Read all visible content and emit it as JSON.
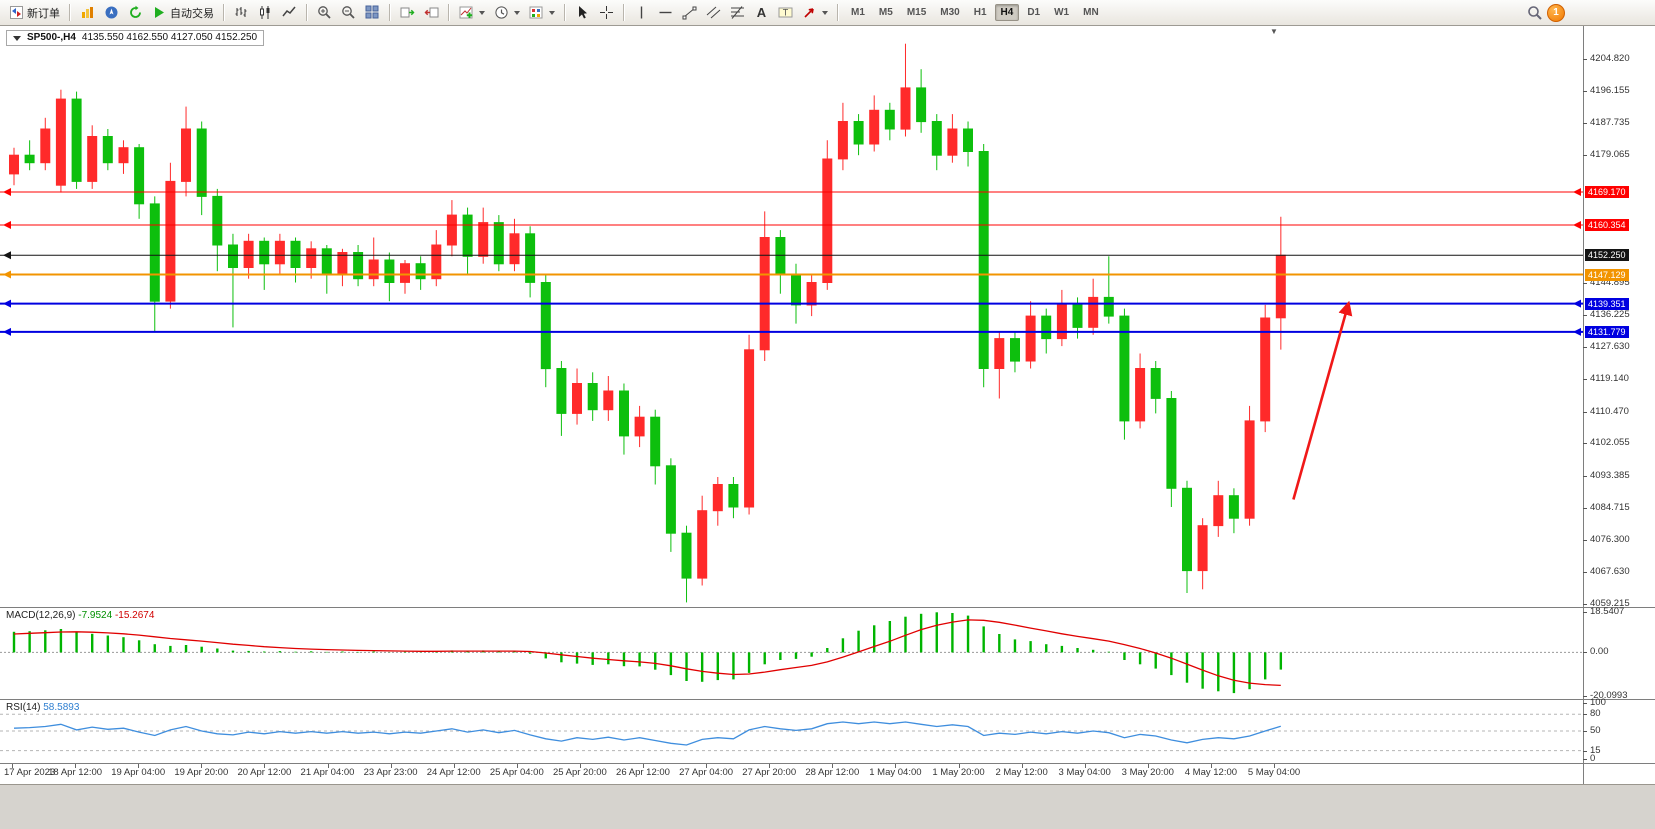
{
  "toolbar": {
    "new_order": "新订单",
    "autotrading": "自动交易",
    "timeframes": [
      "M1",
      "M5",
      "M15",
      "M30",
      "H1",
      "H4",
      "D1",
      "W1",
      "MN"
    ],
    "active_timeframe": "H4",
    "notification_count": "1"
  },
  "symbol_bar": {
    "symbol": "SP500-,H4",
    "ohlc": "4135.550 4162.550 4127.050 4152.250"
  },
  "price_axis": {
    "ticks": [
      "4204.820",
      "4196.155",
      "4187.735",
      "4179.065",
      "4144.895",
      "4136.225",
      "4127.630",
      "4119.140",
      "4110.470",
      "4102.055",
      "4093.385",
      "4084.715",
      "4076.300",
      "4067.630",
      "4059.215"
    ]
  },
  "levels": [
    {
      "name": "resistance-1",
      "price": 4169.17,
      "label": "4169.170",
      "color": "#ff0000",
      "width": 1,
      "right_marker": true
    },
    {
      "name": "resistance-2",
      "price": 4160.354,
      "label": "4160.354",
      "color": "#ff0000",
      "width": 1,
      "right_marker": true
    },
    {
      "name": "current-price",
      "price": 4152.25,
      "label": "4152.250",
      "color": "#141414",
      "width": 1,
      "right_marker": false
    },
    {
      "name": "pivot-line",
      "price": 4147.129,
      "label": "4147.129",
      "color": "#f29400",
      "width": 2,
      "right_marker": false
    },
    {
      "name": "support-1",
      "price": 4139.351,
      "label": "4139.351",
      "color": "#0000e0",
      "width": 2,
      "right_marker": true
    },
    {
      "name": "support-2",
      "price": 4131.779,
      "label": "4131.779",
      "color": "#0000e0",
      "width": 2,
      "right_marker": true
    }
  ],
  "trend_arrow": {
    "from_index": 81.8,
    "from_price": 4087,
    "to_index": 85.3,
    "to_price": 4139,
    "color": "#f01818"
  },
  "macd": {
    "title": "MACD(12,26,9)",
    "main_value": "-7.9524",
    "signal_value": "-15.2674",
    "axis_labels": [
      "18.5407",
      "0.00",
      "-20.0993"
    ],
    "range": {
      "max": 20.5,
      "min": -22
    }
  },
  "rsi": {
    "title": "RSI(14)",
    "value": "58.5893",
    "axis_labels": [
      "100",
      "80",
      "50",
      "15",
      "0"
    ],
    "levels": [
      80,
      50,
      15
    ],
    "range": {
      "max": 100,
      "min": 0
    }
  },
  "time_axis": {
    "labels": [
      "17 Apr 2023",
      "18 Apr 12:00",
      "19 Apr 04:00",
      "19 Apr 20:00",
      "20 Apr 12:00",
      "21 Apr 04:00",
      "23 Apr 23:00",
      "24 Apr 12:00",
      "25 Apr 04:00",
      "25 Apr 20:00",
      "26 Apr 12:00",
      "27 Apr 04:00",
      "27 Apr 20:00",
      "28 Apr 12:00",
      "1 May 04:00",
      "1 May 20:00",
      "2 May 12:00",
      "3 May 04:00",
      "3 May 20:00",
      "4 May 12:00",
      "5 May 04:00"
    ]
  },
  "chart_data": {
    "type": "candlestick",
    "symbol": "SP500-",
    "period": "H4",
    "up_color": "#ff2a2a",
    "down_color": "#0dbf0d",
    "price_range": {
      "top": 4213.0,
      "bottom": 4058.0
    },
    "candles": [
      [
        4174,
        4181,
        4171,
        4179
      ],
      [
        4179,
        4183,
        4175,
        4177
      ],
      [
        4177,
        4189,
        4175,
        4186
      ],
      [
        4171,
        4196.5,
        4169,
        4194
      ],
      [
        4194,
        4196,
        4170,
        4172
      ],
      [
        4172,
        4187,
        4170,
        4184
      ],
      [
        4184,
        4186,
        4175,
        4177
      ],
      [
        4177,
        4183,
        4174,
        4181
      ],
      [
        4181,
        4182,
        4162,
        4166
      ],
      [
        4166,
        4168,
        4132,
        4140
      ],
      [
        4140,
        4177,
        4138,
        4172
      ],
      [
        4172,
        4192,
        4168,
        4186
      ],
      [
        4186,
        4188,
        4163,
        4168
      ],
      [
        4168,
        4170,
        4148,
        4155
      ],
      [
        4155,
        4158,
        4133,
        4149
      ],
      [
        4149,
        4158,
        4146,
        4156
      ],
      [
        4156,
        4157,
        4143,
        4150
      ],
      [
        4150,
        4158,
        4147,
        4156
      ],
      [
        4156,
        4157,
        4145,
        4149
      ],
      [
        4149,
        4156,
        4146,
        4154
      ],
      [
        4154,
        4155,
        4142,
        4147
      ],
      [
        4147,
        4154,
        4144,
        4153
      ],
      [
        4153,
        4155,
        4144,
        4146
      ],
      [
        4146,
        4157,
        4144,
        4151
      ],
      [
        4151,
        4153,
        4140,
        4145
      ],
      [
        4145,
        4151,
        4142,
        4150
      ],
      [
        4150,
        4152,
        4143,
        4146
      ],
      [
        4146,
        4159,
        4144,
        4155
      ],
      [
        4155,
        4167,
        4152,
        4163
      ],
      [
        4163,
        4165,
        4147,
        4152
      ],
      [
        4152,
        4165,
        4150,
        4161
      ],
      [
        4161,
        4163,
        4148,
        4150
      ],
      [
        4150,
        4162,
        4148,
        4158
      ],
      [
        4158,
        4160,
        4141,
        4145
      ],
      [
        4145,
        4147,
        4117,
        4122
      ],
      [
        4122,
        4124,
        4104,
        4110
      ],
      [
        4110,
        4122,
        4107,
        4118
      ],
      [
        4118,
        4121,
        4108,
        4111
      ],
      [
        4111,
        4120,
        4108,
        4116
      ],
      [
        4116,
        4118,
        4099,
        4104
      ],
      [
        4104,
        4112,
        4101,
        4109
      ],
      [
        4109,
        4111,
        4091,
        4096
      ],
      [
        4096,
        4098,
        4073,
        4078
      ],
      [
        4078,
        4080,
        4059.5,
        4066
      ],
      [
        4066,
        4088,
        4064,
        4084
      ],
      [
        4084,
        4093,
        4080,
        4091
      ],
      [
        4091,
        4093,
        4082,
        4085
      ],
      [
        4085,
        4131,
        4083,
        4127
      ],
      [
        4127,
        4164,
        4124,
        4157
      ],
      [
        4157,
        4159,
        4142,
        4147
      ],
      [
        4147,
        4150,
        4134,
        4139
      ],
      [
        4139,
        4147,
        4136,
        4145
      ],
      [
        4145,
        4183,
        4143,
        4178
      ],
      [
        4178,
        4193,
        4175,
        4188
      ],
      [
        4188,
        4190,
        4179,
        4182
      ],
      [
        4182,
        4195,
        4180,
        4191
      ],
      [
        4191,
        4193,
        4183,
        4186
      ],
      [
        4186,
        4208.8,
        4184,
        4197
      ],
      [
        4197,
        4202,
        4185,
        4188
      ],
      [
        4188,
        4190,
        4175,
        4179
      ],
      [
        4179,
        4190,
        4177,
        4186
      ],
      [
        4186,
        4188,
        4176,
        4180
      ],
      [
        4180,
        4182,
        4117,
        4122
      ],
      [
        4122,
        4132,
        4114,
        4130
      ],
      [
        4130,
        4132,
        4121,
        4124
      ],
      [
        4124,
        4140,
        4122,
        4136
      ],
      [
        4136,
        4138,
        4126,
        4130
      ],
      [
        4130,
        4143,
        4128,
        4139
      ],
      [
        4139,
        4141,
        4130,
        4133
      ],
      [
        4133,
        4146,
        4131,
        4141
      ],
      [
        4141,
        4152,
        4134,
        4136
      ],
      [
        4136,
        4138,
        4103,
        4108
      ],
      [
        4108,
        4126,
        4106,
        4122
      ],
      [
        4122,
        4124,
        4110,
        4114
      ],
      [
        4114,
        4116,
        4085,
        4090
      ],
      [
        4090,
        4092,
        4062,
        4068
      ],
      [
        4068,
        4082,
        4063,
        4080
      ],
      [
        4080,
        4092,
        4077,
        4088
      ],
      [
        4088,
        4090,
        4078,
        4082
      ],
      [
        4082,
        4112,
        4080,
        4108
      ],
      [
        4108,
        4139,
        4105,
        4135.5
      ],
      [
        4135.55,
        4162.55,
        4127.05,
        4152.25
      ]
    ],
    "macd_main": [
      9.5,
      9.8,
      10.2,
      10.8,
      9.5,
      8.6,
      7.8,
      7.0,
      5.6,
      3.8,
      3.0,
      3.4,
      2.6,
      1.8,
      0.8,
      0.7,
      0.4,
      0.6,
      0.3,
      0.5,
      0.2,
      0.4,
      0.2,
      0.4,
      0.1,
      0.3,
      0.1,
      0.5,
      0.9,
      0.6,
      0.9,
      0.5,
      0.7,
      -0.6,
      -2.8,
      -4.6,
      -5.2,
      -5.8,
      -5.5,
      -6.4,
      -6.5,
      -8.0,
      -10.5,
      -13.2,
      -13.6,
      -12.8,
      -12.5,
      -9.5,
      -5.5,
      -3.5,
      -3.0,
      -2.0,
      2.0,
      6.5,
      10.0,
      12.5,
      14.5,
      16.5,
      17.8,
      18.5,
      18.2,
      17.0,
      12.0,
      8.5,
      6.0,
      5.2,
      3.8,
      3.0,
      2.0,
      1.2,
      0.3,
      -3.5,
      -5.5,
      -7.5,
      -10.5,
      -14.0,
      -16.8,
      -18.0,
      -18.8,
      -17.0,
      -12.5,
      -7.9524
    ],
    "macd_signal": [
      8.5,
      8.8,
      9.1,
      9.4,
      9.5,
      9.3,
      9.0,
      8.6,
      8.0,
      7.2,
      6.4,
      5.8,
      5.2,
      4.5,
      3.8,
      3.2,
      2.6,
      2.2,
      1.8,
      1.5,
      1.3,
      1.1,
      0.9,
      0.8,
      0.7,
      0.6,
      0.5,
      0.5,
      0.6,
      0.6,
      0.6,
      0.6,
      0.6,
      0.4,
      -0.3,
      -1.1,
      -1.9,
      -2.7,
      -3.3,
      -3.9,
      -4.4,
      -5.1,
      -6.2,
      -7.6,
      -8.8,
      -9.6,
      -10.2,
      -10.0,
      -9.1,
      -8.0,
      -7.0,
      -6.0,
      -4.4,
      -2.2,
      0.2,
      2.7,
      5.1,
      7.9,
      10.5,
      12.5,
      14.0,
      15.0,
      14.8,
      13.9,
      12.6,
      11.2,
      9.9,
      8.6,
      7.4,
      6.3,
      5.2,
      3.6,
      1.8,
      -0.3,
      -2.7,
      -5.4,
      -8.2,
      -10.8,
      -12.9,
      -14.2,
      -14.9,
      -15.2674
    ],
    "rsi": [
      55,
      56,
      58,
      62,
      52,
      57,
      53,
      55,
      48,
      42,
      52,
      58,
      50,
      45,
      43,
      48,
      45,
      49,
      46,
      49,
      46,
      49,
      46,
      48,
      45,
      48,
      46,
      50,
      54,
      48,
      52,
      47,
      51,
      43,
      36,
      32,
      38,
      35,
      39,
      34,
      38,
      33,
      28,
      25,
      35,
      38,
      36,
      52,
      58,
      54,
      51,
      54,
      63,
      66,
      63,
      66,
      63,
      66,
      62,
      58,
      61,
      58,
      42,
      46,
      44,
      48,
      45,
      49,
      46,
      50,
      47,
      38,
      44,
      41,
      34,
      29,
      35,
      38,
      36,
      41,
      50,
      58.59
    ]
  }
}
